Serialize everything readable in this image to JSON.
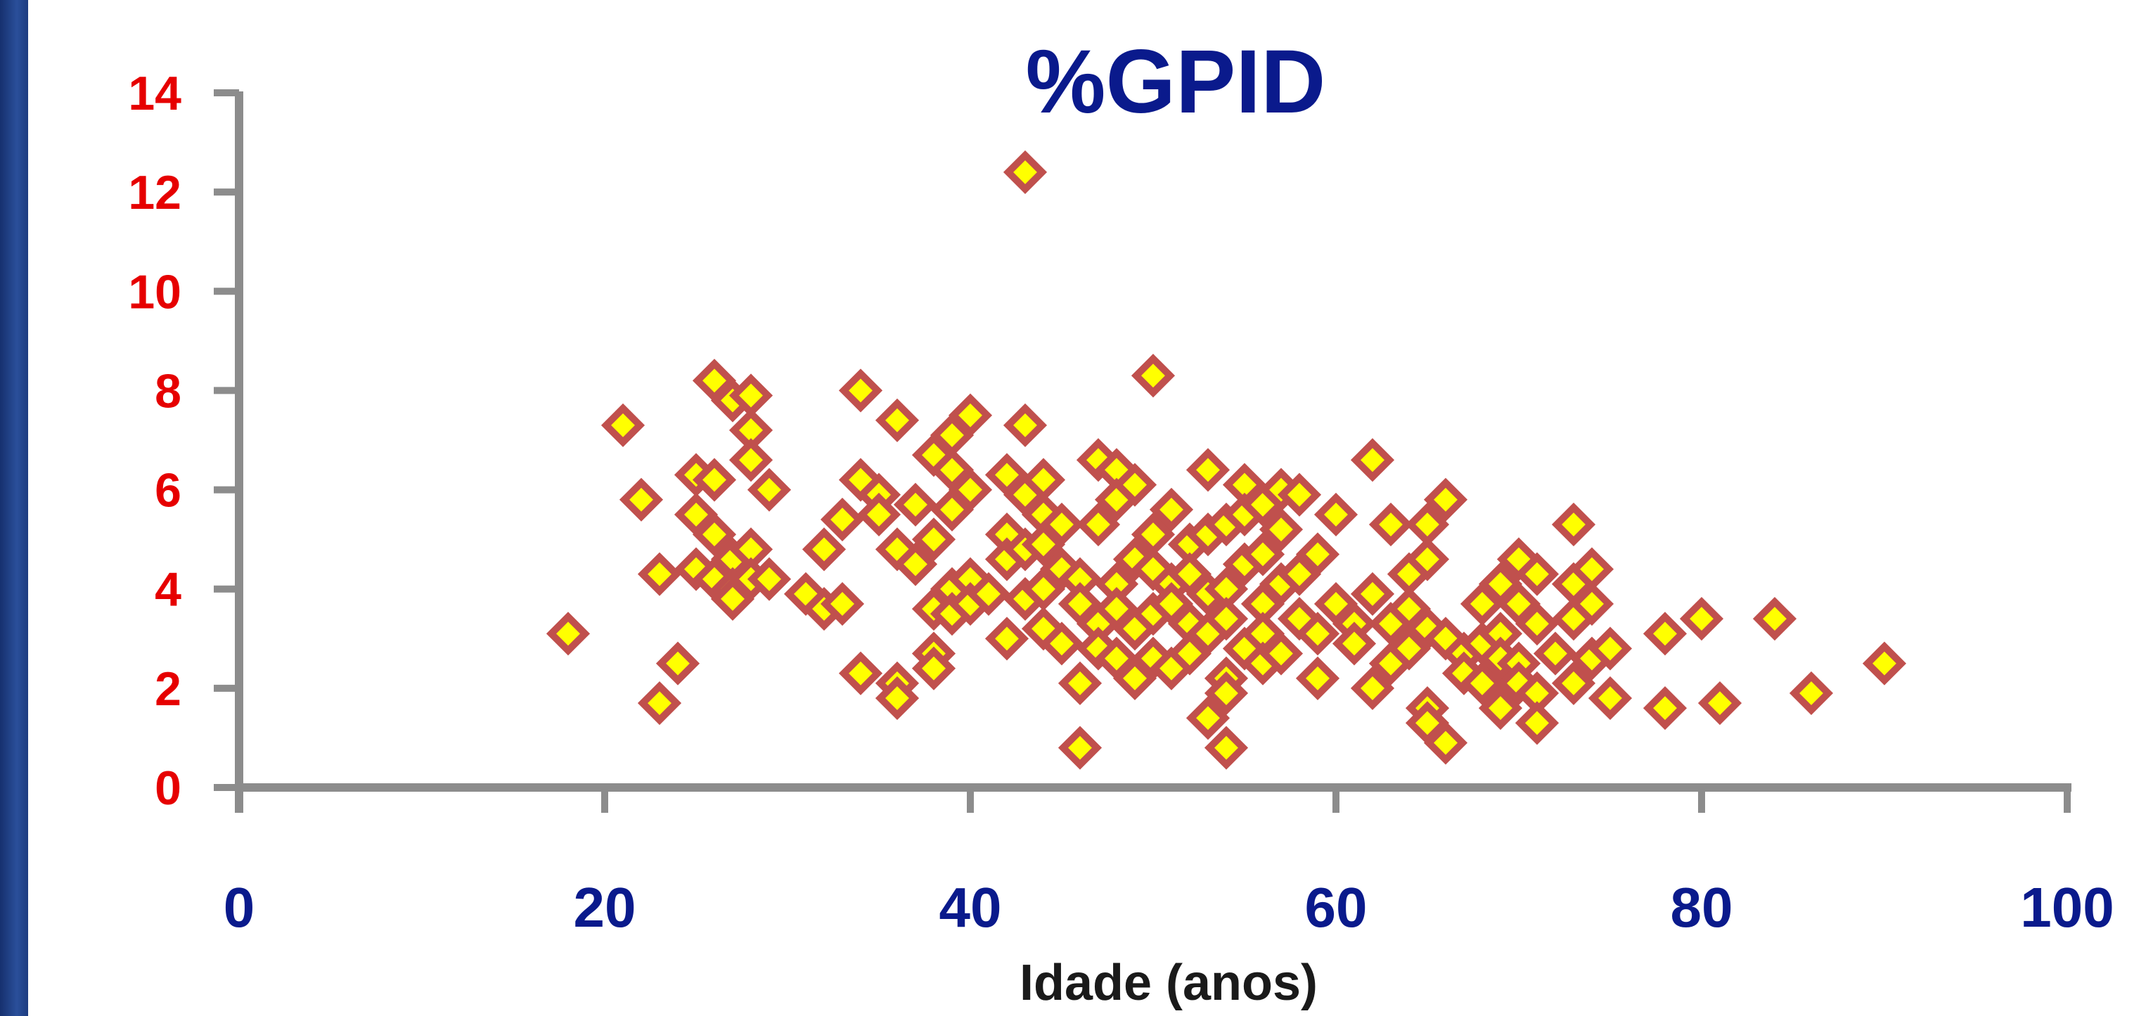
{
  "chart_data": {
    "type": "scatter",
    "title": "%GPID",
    "xlabel": "Idade (anos)",
    "ylabel": "",
    "xlim": [
      0,
      100
    ],
    "ylim": [
      0,
      14
    ],
    "x_ticks": [
      "0",
      "20",
      "40",
      "60",
      "80",
      "100"
    ],
    "y_ticks": [
      "0",
      "2",
      "4",
      "6",
      "8",
      "10",
      "12",
      "14"
    ],
    "grid": false,
    "legend": "none",
    "colors": {
      "title": "#0a1a8c",
      "y_tick_labels": "#e60000",
      "x_tick_labels": "#0a1a8c",
      "axis": "#8c8c8c",
      "marker_fill": "#ffff00",
      "marker_edge": "#c0504d",
      "x_label": "#1a1a1a",
      "side_bar": "#1d3c80"
    },
    "series": [
      {
        "marker": "diamond",
        "points": [
          [
            18,
            3.1
          ],
          [
            21,
            7.3
          ],
          [
            22,
            5.8
          ],
          [
            23,
            4.3
          ],
          [
            23,
            1.7
          ],
          [
            24,
            2.5
          ],
          [
            25,
            6.3
          ],
          [
            25,
            5.5
          ],
          [
            25,
            4.4
          ],
          [
            26,
            8.2
          ],
          [
            26,
            6.2
          ],
          [
            26,
            5.1
          ],
          [
            26,
            4.2
          ],
          [
            27,
            7.8
          ],
          [
            27,
            4.6
          ],
          [
            27,
            4.0
          ],
          [
            27,
            3.8
          ],
          [
            28,
            7.9
          ],
          [
            28,
            7.2
          ],
          [
            28,
            6.6
          ],
          [
            28,
            4.8
          ],
          [
            28,
            4.2
          ],
          [
            29,
            6.0
          ],
          [
            29,
            4.2
          ],
          [
            31,
            3.9
          ],
          [
            32,
            3.6
          ],
          [
            32,
            4.8
          ],
          [
            33,
            5.4
          ],
          [
            33,
            3.7
          ],
          [
            34,
            8.0
          ],
          [
            34,
            6.2
          ],
          [
            34,
            2.3
          ],
          [
            35,
            5.9
          ],
          [
            35,
            5.5
          ],
          [
            36,
            7.4
          ],
          [
            36,
            4.8
          ],
          [
            36,
            2.1
          ],
          [
            36,
            1.8
          ],
          [
            37,
            5.7
          ],
          [
            37,
            4.5
          ],
          [
            38,
            6.7
          ],
          [
            38,
            5.0
          ],
          [
            38,
            3.6
          ],
          [
            38,
            2.7
          ],
          [
            38,
            2.4
          ],
          [
            39,
            7.1
          ],
          [
            39,
            6.4
          ],
          [
            39,
            5.6
          ],
          [
            39,
            4.0
          ],
          [
            39,
            3.5
          ],
          [
            40,
            7.5
          ],
          [
            40,
            6.0
          ],
          [
            40,
            4.2
          ],
          [
            40,
            3.7
          ],
          [
            41,
            3.9
          ],
          [
            42,
            6.3
          ],
          [
            42,
            5.1
          ],
          [
            42,
            4.6
          ],
          [
            42,
            3.0
          ],
          [
            43,
            12.4
          ],
          [
            43,
            7.3
          ],
          [
            43,
            5.9
          ],
          [
            43,
            4.8
          ],
          [
            43,
            3.8
          ],
          [
            44,
            6.2
          ],
          [
            44,
            5.5
          ],
          [
            44,
            4.9
          ],
          [
            44,
            4.0
          ],
          [
            44,
            3.2
          ],
          [
            45,
            5.3
          ],
          [
            45,
            4.4
          ],
          [
            45,
            2.9
          ],
          [
            46,
            4.2
          ],
          [
            46,
            3.7
          ],
          [
            46,
            2.1
          ],
          [
            46,
            0.8
          ],
          [
            47,
            6.6
          ],
          [
            47,
            5.3
          ],
          [
            47,
            3.3
          ],
          [
            47,
            2.8
          ],
          [
            48,
            6.4
          ],
          [
            48,
            5.8
          ],
          [
            48,
            4.1
          ],
          [
            48,
            3.6
          ],
          [
            48,
            2.6
          ],
          [
            49,
            6.1
          ],
          [
            49,
            4.6
          ],
          [
            49,
            3.2
          ],
          [
            49,
            2.2
          ],
          [
            50,
            8.3
          ],
          [
            50,
            5.1
          ],
          [
            50,
            4.4
          ],
          [
            50,
            3.5
          ],
          [
            50,
            2.6
          ],
          [
            51,
            5.6
          ],
          [
            51,
            4.1
          ],
          [
            51,
            3.7
          ],
          [
            51,
            2.4
          ],
          [
            52,
            4.9
          ],
          [
            52,
            4.3
          ],
          [
            52,
            3.3
          ],
          [
            52,
            2.7
          ],
          [
            53,
            6.4
          ],
          [
            53,
            5.1
          ],
          [
            53,
            3.9
          ],
          [
            53,
            3.1
          ],
          [
            53,
            1.4
          ],
          [
            54,
            5.3
          ],
          [
            54,
            4.0
          ],
          [
            54,
            3.4
          ],
          [
            54,
            2.2
          ],
          [
            54,
            1.9
          ],
          [
            54,
            0.8
          ],
          [
            55,
            6.1
          ],
          [
            55,
            5.5
          ],
          [
            55,
            4.5
          ],
          [
            55,
            2.8
          ],
          [
            56,
            5.7
          ],
          [
            56,
            4.7
          ],
          [
            56,
            3.7
          ],
          [
            56,
            3.1
          ],
          [
            56,
            2.5
          ],
          [
            57,
            6.0
          ],
          [
            57,
            5.2
          ],
          [
            57,
            4.1
          ],
          [
            57,
            2.7
          ],
          [
            58,
            5.9
          ],
          [
            58,
            4.3
          ],
          [
            58,
            3.4
          ],
          [
            59,
            4.7
          ],
          [
            59,
            3.1
          ],
          [
            59,
            2.2
          ],
          [
            60,
            5.5
          ],
          [
            60,
            3.7
          ],
          [
            61,
            3.3
          ],
          [
            61,
            2.9
          ],
          [
            62,
            6.6
          ],
          [
            62,
            3.9
          ],
          [
            62,
            2.0
          ],
          [
            63,
            5.3
          ],
          [
            63,
            3.3
          ],
          [
            63,
            2.5
          ],
          [
            64,
            4.3
          ],
          [
            64,
            3.6
          ],
          [
            64,
            2.8
          ],
          [
            65,
            5.3
          ],
          [
            65,
            4.6
          ],
          [
            65,
            3.2
          ],
          [
            65,
            1.6
          ],
          [
            65,
            1.3
          ],
          [
            66,
            5.8
          ],
          [
            66,
            3.0
          ],
          [
            66,
            0.9
          ],
          [
            67,
            2.7
          ],
          [
            67,
            2.3
          ],
          [
            68,
            3.7
          ],
          [
            68,
            2.9
          ],
          [
            68,
            2.1
          ],
          [
            69,
            4.1
          ],
          [
            69,
            3.1
          ],
          [
            69,
            2.6
          ],
          [
            69,
            1.6
          ],
          [
            70,
            4.6
          ],
          [
            70,
            3.7
          ],
          [
            70,
            2.5
          ],
          [
            70,
            2.1
          ],
          [
            71,
            4.3
          ],
          [
            71,
            3.3
          ],
          [
            71,
            1.9
          ],
          [
            71,
            1.3
          ],
          [
            72,
            2.7
          ],
          [
            73,
            5.3
          ],
          [
            73,
            4.1
          ],
          [
            73,
            3.4
          ],
          [
            73,
            2.1
          ],
          [
            74,
            4.4
          ],
          [
            74,
            3.7
          ],
          [
            74,
            2.6
          ],
          [
            75,
            2.8
          ],
          [
            75,
            1.8
          ],
          [
            78,
            3.1
          ],
          [
            78,
            1.6
          ],
          [
            80,
            3.4
          ],
          [
            81,
            1.7
          ],
          [
            84,
            3.4
          ],
          [
            86,
            1.9
          ],
          [
            90,
            2.5
          ]
        ]
      }
    ]
  }
}
